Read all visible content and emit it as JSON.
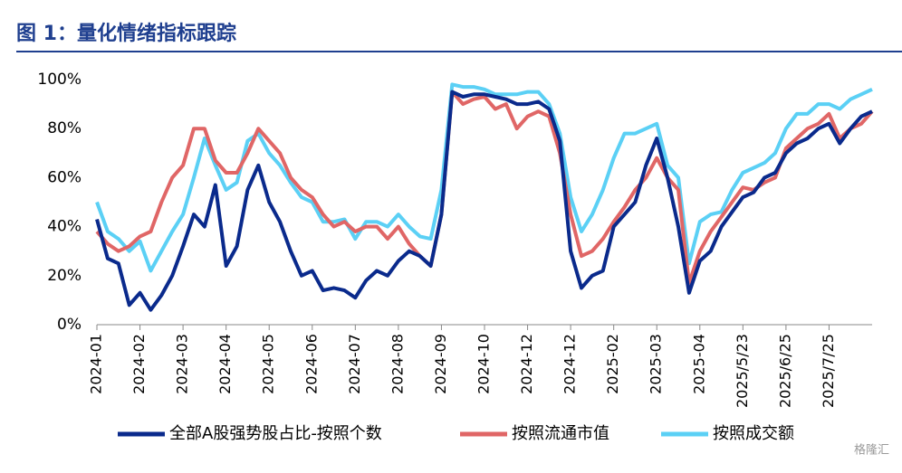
{
  "chart_data": {
    "type": "line",
    "title": "图 1：量化情绪指标跟踪",
    "categories": [
      "2024-01",
      null,
      null,
      null,
      "2024-02",
      null,
      null,
      null,
      "2024-03",
      null,
      null,
      null,
      "2024-04",
      null,
      null,
      null,
      "2024-05",
      null,
      null,
      null,
      "2024-06",
      null,
      null,
      null,
      "2024-07",
      null,
      null,
      null,
      "2024-08",
      null,
      null,
      null,
      "2024-09",
      null,
      null,
      null,
      "2024-10",
      null,
      null,
      null,
      "2024-12",
      null,
      null,
      null,
      "2024-12",
      null,
      null,
      null,
      "2025-02",
      null,
      null,
      null,
      "2025-03",
      null,
      null,
      null,
      "2025-04",
      null,
      null,
      null,
      "2025/5/23",
      null,
      null,
      null,
      "2025/6/25",
      null,
      null,
      null,
      "2025/7/25",
      null,
      null,
      null,
      null
    ],
    "series": [
      {
        "name": "全部A股强势股占比-按照个数",
        "color": "#0a2a8c",
        "values": [
          43,
          27,
          25,
          8,
          13,
          6,
          12,
          20,
          32,
          45,
          40,
          57,
          24,
          32,
          55,
          65,
          50,
          42,
          30,
          20,
          22,
          14,
          15,
          14,
          11,
          18,
          22,
          20,
          26,
          30,
          28,
          24,
          45,
          95,
          93,
          94,
          94,
          93,
          92,
          90,
          90,
          91,
          88,
          75,
          30,
          15,
          20,
          22,
          40,
          45,
          50,
          65,
          76,
          60,
          40,
          13,
          26,
          30,
          40,
          46,
          52,
          54,
          60,
          62,
          70,
          74,
          76,
          80,
          82,
          74,
          80,
          85,
          87
        ]
      },
      {
        "name": "按照流通市值",
        "color": "#e06666",
        "values": [
          38,
          33,
          30,
          32,
          36,
          38,
          50,
          60,
          65,
          80,
          80,
          67,
          62,
          62,
          70,
          80,
          75,
          70,
          60,
          55,
          52,
          45,
          40,
          42,
          38,
          40,
          40,
          35,
          40,
          33,
          28,
          24,
          45,
          95,
          90,
          92,
          93,
          88,
          90,
          80,
          85,
          87,
          85,
          70,
          45,
          28,
          30,
          35,
          42,
          48,
          55,
          60,
          68,
          60,
          55,
          17,
          30,
          38,
          44,
          50,
          56,
          55,
          58,
          60,
          72,
          76,
          80,
          82,
          86,
          76,
          80,
          82,
          87
        ]
      },
      {
        "name": "按照成交额",
        "color": "#5bd0f5",
        "values": [
          50,
          38,
          35,
          30,
          34,
          22,
          30,
          38,
          45,
          60,
          76,
          65,
          55,
          58,
          75,
          78,
          70,
          65,
          58,
          52,
          50,
          42,
          42,
          43,
          35,
          42,
          42,
          40,
          45,
          40,
          36,
          35,
          55,
          98,
          97,
          97,
          96,
          94,
          94,
          94,
          95,
          95,
          90,
          78,
          52,
          38,
          45,
          55,
          68,
          78,
          78,
          80,
          82,
          65,
          60,
          25,
          42,
          45,
          46,
          55,
          62,
          64,
          66,
          70,
          80,
          86,
          86,
          90,
          90,
          88,
          92,
          94,
          96
        ]
      }
    ],
    "ylim": [
      0,
      100
    ],
    "yticks": [
      {
        "value": 0,
        "label": "0%"
      },
      {
        "value": 20,
        "label": "20%"
      },
      {
        "value": 40,
        "label": "40%"
      },
      {
        "value": 60,
        "label": "60%"
      },
      {
        "value": 80,
        "label": "80%"
      },
      {
        "value": 100,
        "label": "100%"
      }
    ],
    "grid": false,
    "legend": "bottom",
    "watermark": "格隆汇"
  }
}
